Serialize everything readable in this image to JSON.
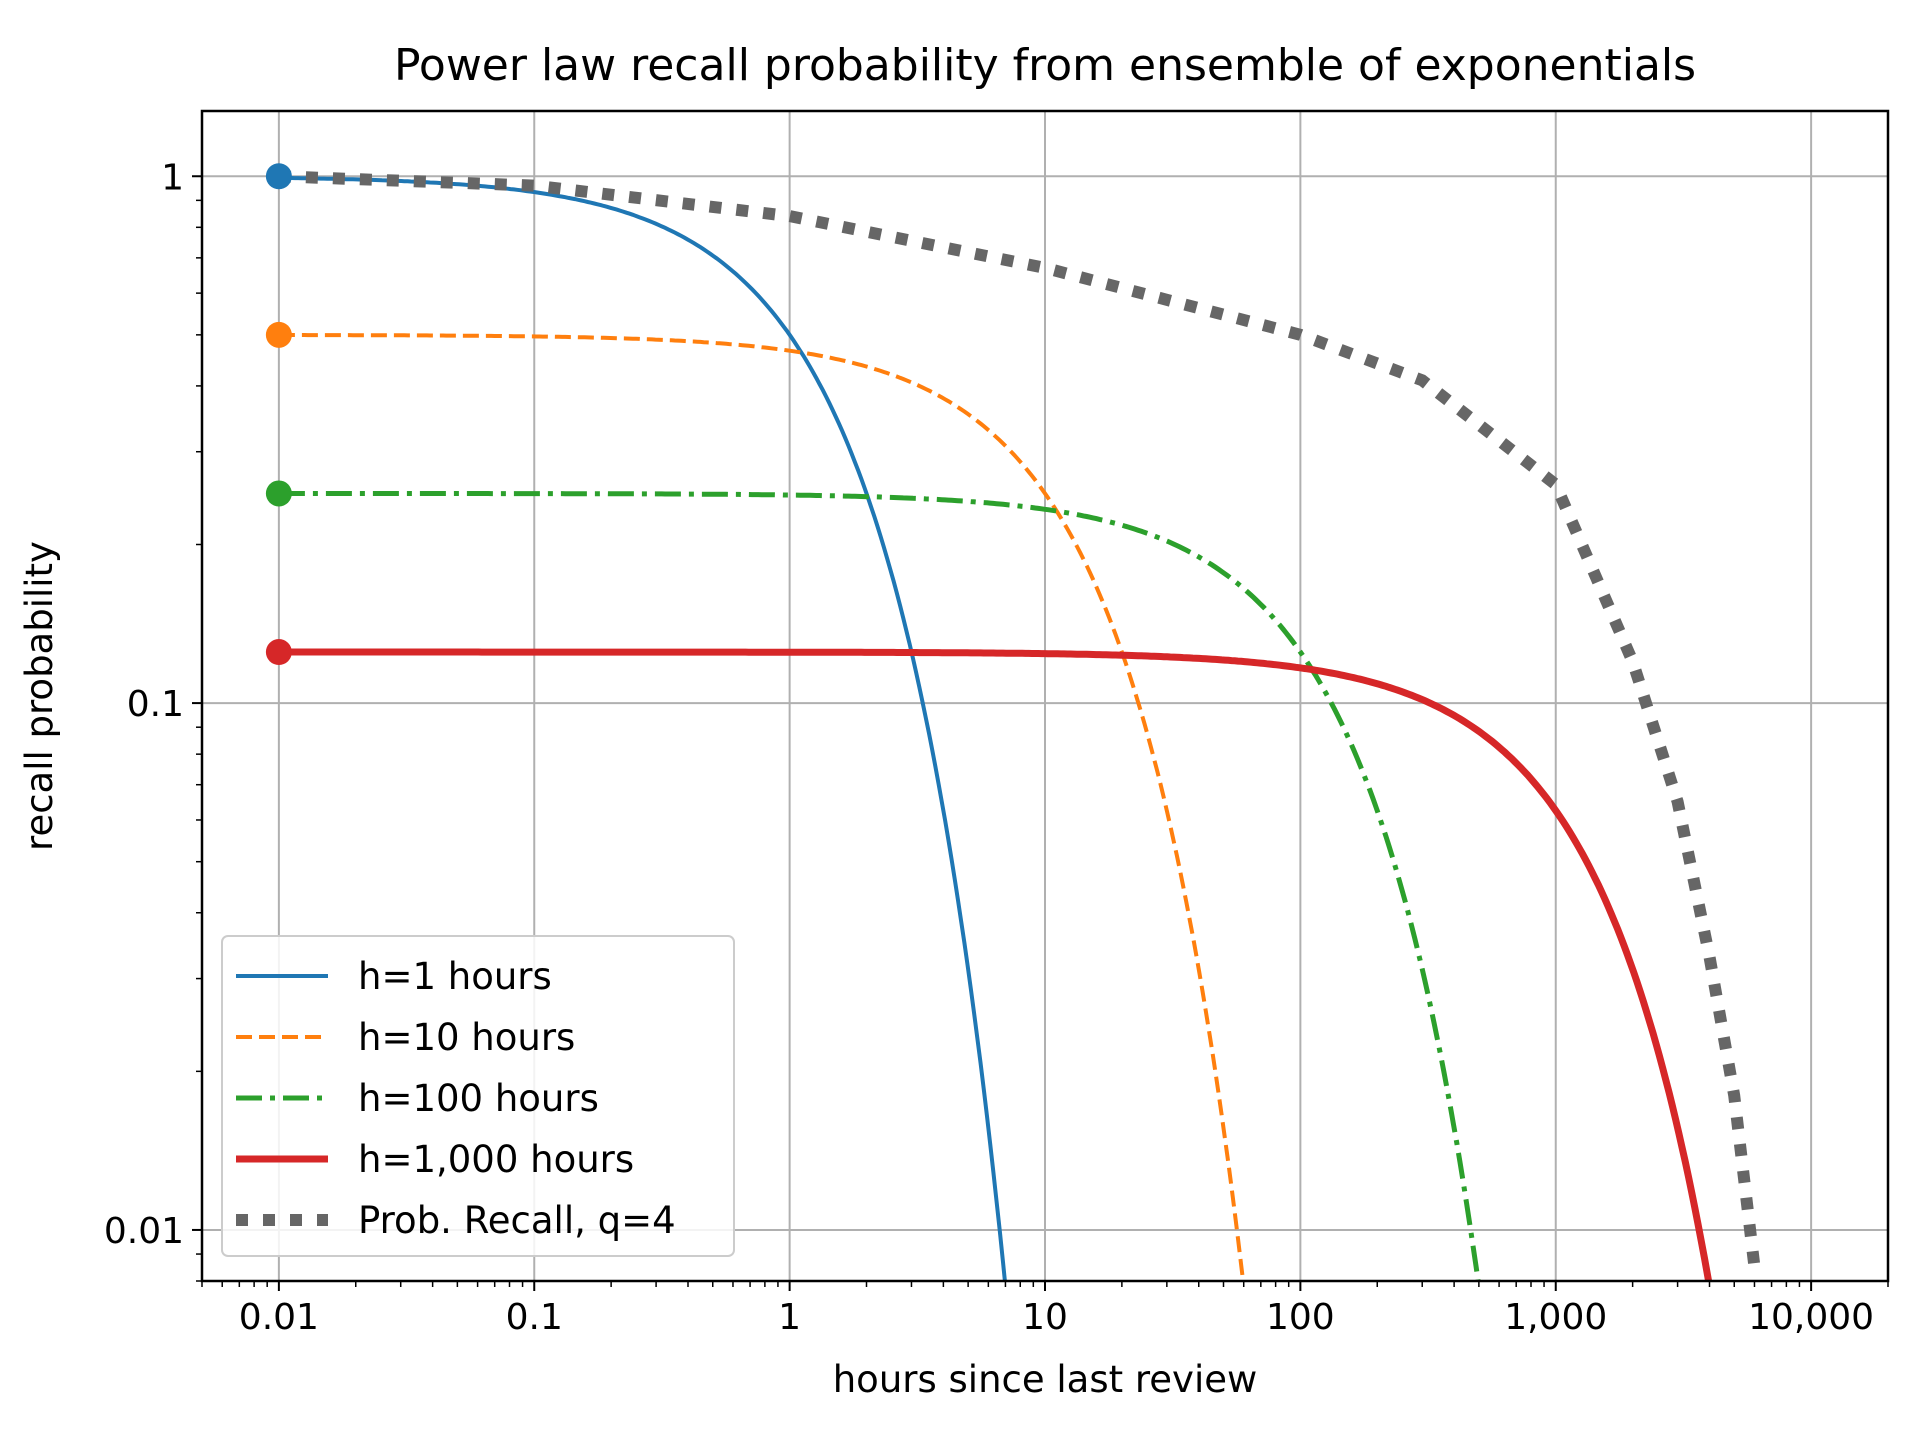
{
  "chart_data": {
    "type": "line",
    "title": "Power law recall probability from ensemble of exponentials",
    "xlabel": "hours since last review",
    "ylabel": "recall probability",
    "xscale": "log",
    "yscale": "log",
    "xlim": [
      0.005,
      20000
    ],
    "ylim": [
      0.008,
      1.33
    ],
    "grid": true,
    "legend_position": "lower-left",
    "x_ticks": [
      {
        "value": 0.01,
        "label": "0.01"
      },
      {
        "value": 0.1,
        "label": "0.1"
      },
      {
        "value": 1,
        "label": "1"
      },
      {
        "value": 10,
        "label": "10"
      },
      {
        "value": 100,
        "label": "100"
      },
      {
        "value": 1000,
        "label": "1,000"
      },
      {
        "value": 10000,
        "label": "10,000"
      }
    ],
    "y_ticks": [
      {
        "value": 0.01,
        "label": "0.01"
      },
      {
        "value": 0.1,
        "label": "0.1"
      },
      {
        "value": 1,
        "label": "1"
      }
    ],
    "series": [
      {
        "name": "h=1 hours",
        "halflife": 1,
        "weight": 1.0,
        "color": "#1f77b4",
        "style": "solid",
        "width": 4,
        "start": {
          "x": 0.01,
          "y": 1.0
        }
      },
      {
        "name": "h=10 hours",
        "halflife": 10,
        "weight": 0.5,
        "color": "#ff7f0e",
        "style": "dashed",
        "width": 4,
        "start": {
          "x": 0.01,
          "y": 0.5
        }
      },
      {
        "name": "h=100 hours",
        "halflife": 100,
        "weight": 0.25,
        "color": "#2ca02c",
        "style": "dashdot",
        "width": 5,
        "start": {
          "x": 0.01,
          "y": 0.25
        }
      },
      {
        "name": "h=1,000 hours",
        "halflife": 1000,
        "weight": 0.125,
        "color": "#d62728",
        "style": "solid",
        "width": 7,
        "start": {
          "x": 0.01,
          "y": 0.125
        }
      },
      {
        "name": "Prob. Recall, q=4",
        "color": "#666666",
        "style": "dotted",
        "width": 12,
        "start": {
          "x": 0.01,
          "y": 1.0
        },
        "points": [
          [
            0.01,
            1.0
          ],
          [
            0.1,
            0.96
          ],
          [
            1,
            0.84
          ],
          [
            10,
            0.67
          ],
          [
            100,
            0.5
          ],
          [
            300,
            0.41
          ],
          [
            1000,
            0.26
          ],
          [
            2000,
            0.12
          ],
          [
            3000,
            0.065
          ],
          [
            4000,
            0.033
          ],
          [
            5000,
            0.018
          ],
          [
            6000,
            0.0085
          ]
        ]
      }
    ]
  }
}
